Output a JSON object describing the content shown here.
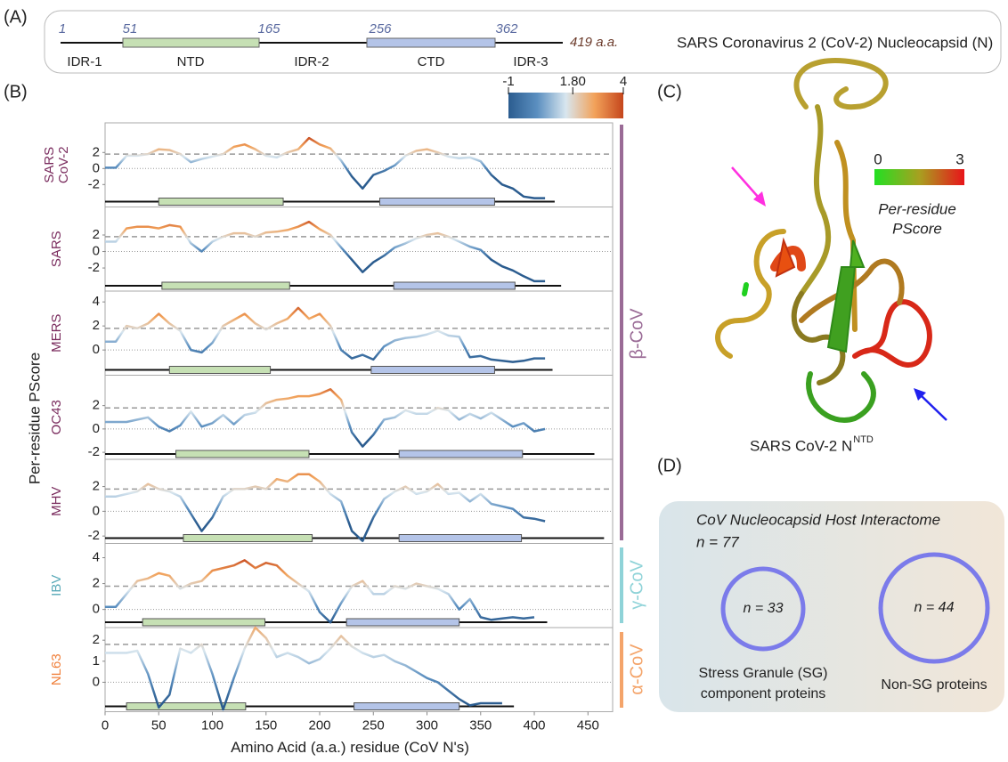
{
  "panel_labels": [
    "(A)",
    "(B)",
    "(C)",
    "(D)"
  ],
  "panel_a": {
    "positions": [
      "1",
      "51",
      "165",
      "256",
      "362"
    ],
    "length": "419 a.a.",
    "regions": [
      "IDR-1",
      "NTD",
      "IDR-2",
      "CTD",
      "IDR-3"
    ],
    "title": "SARS Coronavirus 2 (CoV-2) Nucleocapsid (N)"
  },
  "panel_b": {
    "ylabel": "Per-residue PScore",
    "threshold": 1.8,
    "colorbar": {
      "range": [
        -1,
        4
      ],
      "ticks": [
        -1,
        {
          "value": 1.8,
          "label": "1.80"
        },
        4
      ],
      "colors": [
        "#2b5c8f",
        "#5b8fc0",
        "#d8e6ef",
        "#f2a25a",
        "#c5461c"
      ]
    },
    "domain_colors": [
      "#c6e0b4",
      "#b4c4e8"
    ],
    "groups": [
      {
        "label": "β-CoV",
        "color": "#9a6b96"
      },
      {
        "label": "γ-CoV",
        "color": "#8fd3d8"
      },
      {
        "label": "α-CoV",
        "color": "#f4a46a"
      }
    ]
  },
  "chart_data": [
    {
      "type": "line",
      "label": [
        "SARS",
        "CoV-2"
      ],
      "label_color": "#7a2c5e",
      "xlim": [
        0,
        473
      ],
      "ylim": [
        -4.8,
        5.7
      ],
      "yticks": [
        2,
        0,
        -2
      ],
      "length": 419,
      "domains": [
        [
          50,
          166
        ],
        [
          256,
          363
        ]
      ],
      "x": [
        0,
        10,
        20,
        30,
        40,
        50,
        60,
        70,
        80,
        90,
        100,
        110,
        120,
        130,
        140,
        150,
        160,
        170,
        180,
        190,
        200,
        210,
        220,
        230,
        240,
        250,
        260,
        270,
        280,
        290,
        300,
        310,
        320,
        330,
        340,
        350,
        360,
        370,
        380,
        390,
        400,
        410
      ],
      "values": [
        0.1,
        0.1,
        1.6,
        1.6,
        1.8,
        2.4,
        2.3,
        1.8,
        0.8,
        1.2,
        1.5,
        1.8,
        2.7,
        3,
        2.4,
        1.6,
        1.4,
        2,
        2.4,
        3.8,
        3,
        2.5,
        1,
        -1,
        -2.5,
        -0.8,
        -0.3,
        0.4,
        1.6,
        2.2,
        2.4,
        2,
        1.5,
        1.3,
        1.4,
        0.9,
        -0.8,
        -2,
        -2.5,
        -3.5,
        -3.7,
        -3.7
      ]
    },
    {
      "type": "line",
      "label": [
        "SARS"
      ],
      "label_color": "#7a2c5e",
      "xlim": [
        0,
        473
      ],
      "ylim": [
        -4.8,
        5.4
      ],
      "yticks": [
        2,
        0,
        -2
      ],
      "length": 425,
      "domains": [
        [
          53,
          172
        ],
        [
          269,
          382
        ]
      ],
      "x": [
        0,
        10,
        20,
        30,
        40,
        50,
        60,
        70,
        80,
        90,
        100,
        110,
        120,
        130,
        140,
        150,
        160,
        170,
        180,
        190,
        200,
        210,
        220,
        230,
        240,
        250,
        260,
        270,
        280,
        290,
        300,
        310,
        320,
        330,
        340,
        350,
        360,
        370,
        380,
        390,
        400,
        410
      ],
      "values": [
        1.2,
        1.2,
        2.8,
        3,
        3,
        2.8,
        3.2,
        3,
        1,
        0,
        1.2,
        1.8,
        2.2,
        2.2,
        1.8,
        2.3,
        2.4,
        2.6,
        3,
        3.6,
        2.7,
        2,
        0.5,
        -1,
        -2.5,
        -1.3,
        -0.5,
        0.5,
        1,
        1.6,
        2,
        2.2,
        1.8,
        1.2,
        0.6,
        0.2,
        -1,
        -1.8,
        -2.3,
        -3,
        -3.6,
        -3.6
      ]
    },
    {
      "type": "line",
      "label": [
        "MERS"
      ],
      "label_color": "#7a2c5e",
      "xlim": [
        0,
        473
      ],
      "ylim": [
        -2.1,
        4.9
      ],
      "yticks": [
        4,
        2,
        0
      ],
      "length": 417,
      "domains": [
        [
          60,
          154
        ],
        [
          248,
          363
        ]
      ],
      "x": [
        0,
        10,
        20,
        30,
        40,
        50,
        60,
        70,
        80,
        90,
        100,
        110,
        120,
        130,
        140,
        150,
        160,
        170,
        180,
        190,
        200,
        210,
        220,
        230,
        240,
        250,
        260,
        270,
        280,
        290,
        300,
        310,
        320,
        330,
        340,
        350,
        360,
        370,
        380,
        390,
        400,
        410
      ],
      "values": [
        0.7,
        0.7,
        2,
        1.8,
        2.2,
        3,
        2.2,
        1.6,
        0,
        -0.2,
        0.6,
        2,
        2.5,
        3,
        2.2,
        1.7,
        2.2,
        2.6,
        3.5,
        2.6,
        3,
        2,
        0,
        -0.7,
        -0.4,
        -0.8,
        0.3,
        0.8,
        1,
        1.1,
        1.3,
        1.6,
        1.2,
        1.1,
        -0.6,
        -0.5,
        -0.8,
        -0.9,
        -1,
        -0.9,
        -0.7,
        -0.7
      ]
    },
    {
      "type": "line",
      "label": [
        "OC43"
      ],
      "label_color": "#7a2c5e",
      "xlim": [
        0,
        473
      ],
      "ylim": [
        -2.6,
        4.6
      ],
      "yticks": [
        2,
        0,
        -2
      ],
      "length": 456,
      "domains": [
        [
          66,
          190
        ],
        [
          274,
          389
        ]
      ],
      "x": [
        0,
        10,
        20,
        30,
        40,
        50,
        60,
        70,
        80,
        90,
        100,
        110,
        120,
        130,
        140,
        150,
        160,
        170,
        180,
        190,
        200,
        210,
        220,
        230,
        240,
        250,
        260,
        270,
        280,
        290,
        300,
        310,
        320,
        330,
        340,
        350,
        360,
        370,
        380,
        390,
        400,
        410
      ],
      "values": [
        0.6,
        0.6,
        0.6,
        0.8,
        1,
        0.2,
        -0.2,
        0.3,
        1.5,
        0.2,
        0.5,
        1.2,
        0.4,
        1.2,
        1.4,
        2.2,
        2.5,
        2.6,
        2.8,
        2.8,
        3,
        3.4,
        2.5,
        -0.3,
        -1.5,
        -0.5,
        0.8,
        1,
        1.6,
        1.3,
        1.3,
        1.8,
        1.6,
        0.8,
        1.3,
        0.9,
        1.4,
        0.8,
        0.2,
        0.5,
        -0.2,
        0
      ]
    },
    {
      "type": "line",
      "label": [
        "MHV"
      ],
      "label_color": "#7a2c5e",
      "xlim": [
        0,
        473
      ],
      "ylim": [
        -2.6,
        4.2
      ],
      "yticks": [
        2,
        0,
        -2
      ],
      "length": 465,
      "domains": [
        [
          73,
          193
        ],
        [
          274,
          388
        ]
      ],
      "x": [
        0,
        10,
        20,
        30,
        40,
        50,
        60,
        70,
        80,
        90,
        100,
        110,
        120,
        130,
        140,
        150,
        160,
        170,
        180,
        190,
        200,
        210,
        220,
        230,
        240,
        250,
        260,
        270,
        280,
        290,
        300,
        310,
        320,
        330,
        340,
        350,
        360,
        370,
        380,
        390,
        400,
        410
      ],
      "values": [
        1.2,
        1.2,
        1.4,
        1.6,
        2.2,
        1.8,
        1.6,
        1.2,
        -0.2,
        -1.6,
        -0.5,
        1.2,
        1.8,
        1.8,
        2,
        1.8,
        2.6,
        2.4,
        3,
        3,
        2.4,
        1.4,
        0.8,
        -1.6,
        -2.4,
        -0.5,
        1,
        1.6,
        2,
        1.4,
        1.6,
        2.2,
        1.4,
        1.5,
        0.8,
        1.4,
        0.6,
        0.4,
        0.2,
        -0.5,
        -0.6,
        -0.8
      ]
    },
    {
      "type": "line",
      "label": [
        "IBV"
      ],
      "label_color": "#5aaab8",
      "xlim": [
        0,
        473
      ],
      "ylim": [
        -1.4,
        5.1
      ],
      "yticks": [
        4,
        2,
        0
      ],
      "length": 412,
      "domains": [
        [
          35,
          149
        ],
        [
          225,
          330
        ]
      ],
      "x": [
        0,
        10,
        20,
        30,
        40,
        50,
        60,
        70,
        80,
        90,
        100,
        110,
        120,
        130,
        140,
        150,
        160,
        170,
        180,
        190,
        200,
        210,
        220,
        230,
        240,
        250,
        260,
        270,
        280,
        290,
        300,
        310,
        320,
        330,
        340,
        350,
        360,
        370,
        380,
        390,
        400
      ],
      "values": [
        0.2,
        0.2,
        1.2,
        2.2,
        2.4,
        2.8,
        2.6,
        1.6,
        2,
        2.2,
        3,
        3.2,
        3.4,
        3.8,
        3.2,
        3.6,
        3.4,
        2.6,
        2,
        1.4,
        -0.2,
        -1,
        0.5,
        1.8,
        2.2,
        1.2,
        1.2,
        1.8,
        1.6,
        2,
        1.8,
        1.6,
        1.2,
        0,
        0.8,
        -0.6,
        -0.8,
        -0.7,
        -0.6,
        -0.7,
        -0.6
      ]
    },
    {
      "type": "line",
      "label": [
        "NL63"
      ],
      "label_color": "#f0803c",
      "xlim": [
        0,
        473
      ],
      "ylim": [
        -1.4,
        2.6
      ],
      "yticks": [
        2,
        1,
        0
      ],
      "length": 381,
      "domains": [
        [
          20,
          131
        ],
        [
          232,
          330
        ]
      ],
      "xticks": [
        0,
        50,
        100,
        150,
        200,
        250,
        300,
        350,
        400,
        450
      ],
      "xlabel": "Amino Acid (a.a.) residue (CoV N's)",
      "x": [
        0,
        10,
        20,
        30,
        40,
        50,
        60,
        70,
        80,
        90,
        100,
        110,
        120,
        130,
        140,
        150,
        160,
        170,
        180,
        190,
        200,
        210,
        220,
        230,
        240,
        250,
        260,
        270,
        280,
        290,
        300,
        310,
        320,
        330,
        340,
        350,
        360,
        370
      ],
      "values": [
        1.4,
        1.4,
        1.4,
        1.5,
        0.4,
        -1.2,
        -0.6,
        1.6,
        1.4,
        1.8,
        0.4,
        -1.3,
        0.2,
        1.6,
        2.6,
        2.1,
        1.2,
        1.4,
        1.2,
        0.9,
        1.1,
        1.6,
        2.2,
        1.7,
        1.4,
        1.2,
        1.3,
        1,
        0.8,
        0.5,
        0.2,
        0,
        -0.4,
        -0.8,
        -1.1,
        -1,
        -1,
        -1
      ]
    }
  ],
  "panel_c": {
    "scale": [
      "0",
      "3"
    ],
    "scale_colors": [
      "#22e022",
      "#a8a020",
      "#e8141a"
    ],
    "scale_title": [
      "Per-residue",
      "PScore"
    ],
    "caption": "SARS CoV-2 N",
    "caption_sup": "NTD"
  },
  "panel_d": {
    "title": "CoV Nucleocapsid Host Interactome",
    "total": "n = 77",
    "sg_count": "n = 33",
    "non_sg_count": "n = 44",
    "sg_label": [
      "Stress Granule (SG)",
      "component proteins"
    ],
    "non_sg_label": "Non-SG proteins"
  }
}
